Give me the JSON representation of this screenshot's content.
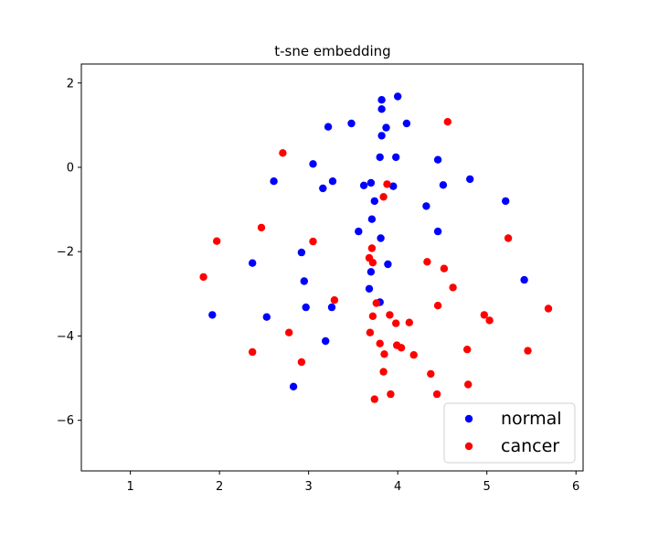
{
  "chart_data": {
    "type": "scatter",
    "title": "t-sne embedding",
    "xlabel": "",
    "ylabel": "",
    "xlim": [
      0.45,
      6.08
    ],
    "ylim": [
      -7.2,
      2.45
    ],
    "xticks": [
      1,
      2,
      3,
      4,
      5,
      6
    ],
    "yticks": [
      2,
      0,
      -2,
      -4,
      -6
    ],
    "grid": false,
    "legend_position": "bottom-right",
    "series": [
      {
        "name": "normal",
        "color": "#0000ff",
        "points": [
          [
            1.92,
            -3.5
          ],
          [
            2.37,
            -2.27
          ],
          [
            2.53,
            -3.55
          ],
          [
            2.61,
            -0.33
          ],
          [
            2.83,
            -5.2
          ],
          [
            2.92,
            -2.02
          ],
          [
            2.95,
            -2.7
          ],
          [
            2.97,
            -3.32
          ],
          [
            3.05,
            0.08
          ],
          [
            3.16,
            -0.5
          ],
          [
            3.19,
            -4.12
          ],
          [
            3.22,
            0.96
          ],
          [
            3.26,
            -3.32
          ],
          [
            3.27,
            -0.33
          ],
          [
            3.48,
            1.04
          ],
          [
            3.56,
            -1.52
          ],
          [
            3.62,
            -0.43
          ],
          [
            3.68,
            -2.88
          ],
          [
            3.7,
            -2.48
          ],
          [
            3.7,
            -0.37
          ],
          [
            3.71,
            -1.23
          ],
          [
            3.74,
            -0.8
          ],
          [
            3.8,
            0.24
          ],
          [
            3.8,
            -3.2
          ],
          [
            3.81,
            -1.68
          ],
          [
            3.82,
            1.6
          ],
          [
            3.82,
            1.38
          ],
          [
            3.82,
            0.75
          ],
          [
            3.87,
            0.94
          ],
          [
            3.89,
            -2.3
          ],
          [
            3.95,
            -0.45
          ],
          [
            3.98,
            0.24
          ],
          [
            4.0,
            1.68
          ],
          [
            4.1,
            1.04
          ],
          [
            4.32,
            -0.92
          ],
          [
            4.45,
            0.18
          ],
          [
            4.45,
            -1.52
          ],
          [
            4.51,
            -0.42
          ],
          [
            4.81,
            -0.28
          ],
          [
            5.21,
            -0.8
          ],
          [
            5.42,
            -2.67
          ]
        ]
      },
      {
        "name": "cancer",
        "color": "#ff0000",
        "points": [
          [
            1.82,
            -2.6
          ],
          [
            1.97,
            -1.75
          ],
          [
            2.37,
            -4.38
          ],
          [
            2.47,
            -1.43
          ],
          [
            2.71,
            0.34
          ],
          [
            2.78,
            -3.92
          ],
          [
            2.92,
            -4.62
          ],
          [
            3.05,
            -1.76
          ],
          [
            3.29,
            -3.15
          ],
          [
            3.68,
            -2.15
          ],
          [
            3.69,
            -3.92
          ],
          [
            3.71,
            -1.92
          ],
          [
            3.72,
            -2.26
          ],
          [
            3.72,
            -3.53
          ],
          [
            3.74,
            -5.5
          ],
          [
            3.76,
            -3.22
          ],
          [
            3.8,
            -4.18
          ],
          [
            3.84,
            -4.85
          ],
          [
            3.84,
            -0.7
          ],
          [
            3.85,
            -4.43
          ],
          [
            3.88,
            -0.4
          ],
          [
            3.91,
            -3.5
          ],
          [
            3.92,
            -5.38
          ],
          [
            3.98,
            -3.7
          ],
          [
            3.99,
            -4.22
          ],
          [
            4.04,
            -4.28
          ],
          [
            4.13,
            -3.68
          ],
          [
            4.18,
            -4.45
          ],
          [
            4.33,
            -2.24
          ],
          [
            4.37,
            -4.9
          ],
          [
            4.44,
            -5.38
          ],
          [
            4.45,
            -3.28
          ],
          [
            4.52,
            -2.4
          ],
          [
            4.56,
            1.08
          ],
          [
            4.62,
            -2.85
          ],
          [
            4.78,
            -4.32
          ],
          [
            4.79,
            -5.15
          ],
          [
            4.97,
            -3.5
          ],
          [
            5.03,
            -3.63
          ],
          [
            5.24,
            -1.68
          ],
          [
            5.46,
            -4.35
          ],
          [
            5.69,
            -3.35
          ]
        ]
      }
    ]
  }
}
